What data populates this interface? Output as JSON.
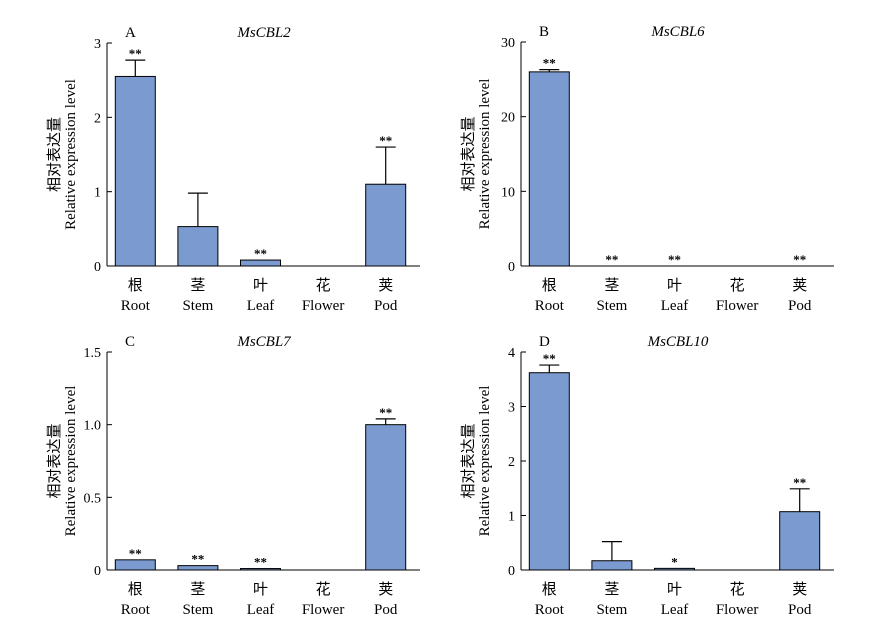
{
  "colors": {
    "bar_fill": "#7b9bd0",
    "axis": "#000000"
  },
  "chart_data": [
    {
      "type": "bar",
      "panel_label": "A",
      "title": "MsCBL2",
      "ylabel_cn": "相对表达量",
      "ylabel": "Relative expression level",
      "categories_cn": [
        "根",
        "茎",
        "叶",
        "花",
        "荚"
      ],
      "categories": [
        "Root",
        "Stem",
        "Leaf",
        "Flower",
        "Pod"
      ],
      "values": [
        2.55,
        0.53,
        0.08,
        0.0,
        1.1
      ],
      "errors": [
        0.22,
        0.45,
        0.0,
        0.0,
        0.5
      ],
      "significance": [
        "**",
        "",
        "**",
        "",
        "**"
      ],
      "ylim": [
        0,
        3
      ],
      "yticks": [
        0,
        1,
        2,
        3
      ],
      "ytick_labels": [
        "0",
        "1",
        "2",
        "3"
      ]
    },
    {
      "type": "bar",
      "panel_label": "B",
      "title": "MsCBL6",
      "ylabel_cn": "相对表达量",
      "ylabel": "Relative expression level",
      "categories_cn": [
        "根",
        "茎",
        "叶",
        "花",
        "荚"
      ],
      "categories": [
        "Root",
        "Stem",
        "Leaf",
        "Flower",
        "Pod"
      ],
      "values": [
        26.0,
        0.0,
        0.0,
        0.0,
        0.0
      ],
      "errors": [
        0.3,
        0.0,
        0.0,
        0.0,
        0.0
      ],
      "significance": [
        "**",
        "**",
        "**",
        "",
        "**"
      ],
      "ylim": [
        0,
        30
      ],
      "yticks": [
        0,
        10,
        20,
        30
      ],
      "ytick_labels": [
        "0",
        "10",
        "20",
        "30"
      ]
    },
    {
      "type": "bar",
      "panel_label": "C",
      "title": "MsCBL7",
      "ylabel_cn": "相对表达量",
      "ylabel": "Relative expression level",
      "categories_cn": [
        "根",
        "茎",
        "叶",
        "花",
        "荚"
      ],
      "categories": [
        "Root",
        "Stem",
        "Leaf",
        "Flower",
        "Pod"
      ],
      "values": [
        0.07,
        0.03,
        0.01,
        0.0,
        1.0
      ],
      "errors": [
        0.0,
        0.0,
        0.0,
        0.0,
        0.04
      ],
      "significance": [
        "**",
        "**",
        "**",
        "",
        "**"
      ],
      "ylim": [
        0,
        1.5
      ],
      "yticks": [
        0,
        0.5,
        1.0,
        1.5
      ],
      "ytick_labels": [
        "0",
        "0.5",
        "1.0",
        "1.5"
      ]
    },
    {
      "type": "bar",
      "panel_label": "D",
      "title": "MsCBL10",
      "ylabel_cn": "相对表达量",
      "ylabel": "Relative expression level",
      "categories_cn": [
        "根",
        "茎",
        "叶",
        "花",
        "荚"
      ],
      "categories": [
        "Root",
        "Stem",
        "Leaf",
        "Flower",
        "Pod"
      ],
      "values": [
        3.62,
        0.17,
        0.03,
        0.0,
        1.07
      ],
      "errors": [
        0.14,
        0.35,
        0.0,
        0.0,
        0.42
      ],
      "significance": [
        "**",
        "",
        "*",
        "",
        "**"
      ],
      "ylim": [
        0,
        4
      ],
      "yticks": [
        0,
        1,
        2,
        3,
        4
      ],
      "ytick_labels": [
        "0",
        "1",
        "2",
        "3",
        "4"
      ]
    }
  ]
}
